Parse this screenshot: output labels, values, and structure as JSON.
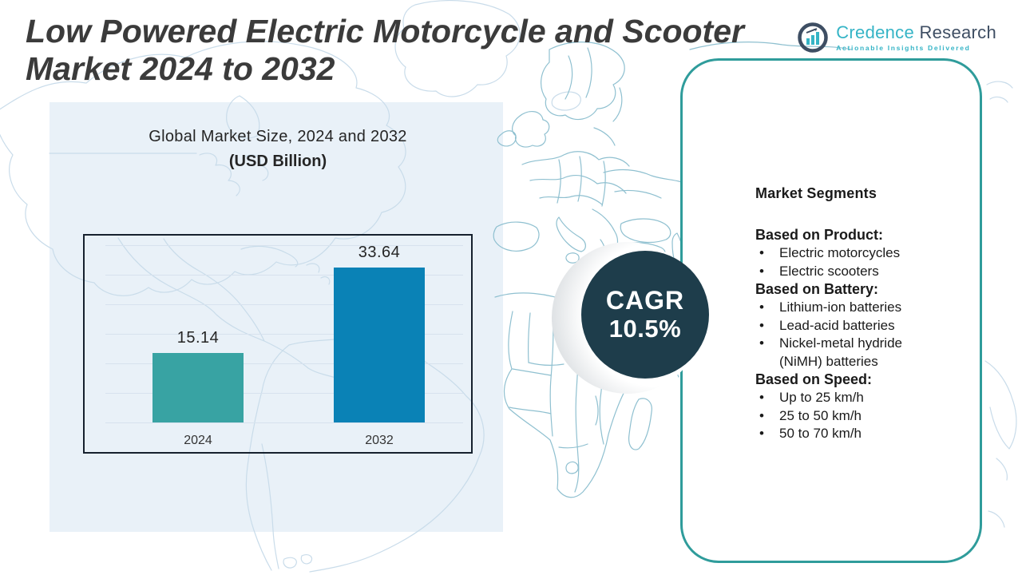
{
  "title": {
    "line1": "Low Powered Electric Motorcycle and Scooter",
    "line2": "Market 2024 to 2032"
  },
  "logo": {
    "brand_first": "Credence",
    "brand_second": "Research",
    "tagline": "Actionable Insights Delivered"
  },
  "chart_data": {
    "type": "bar",
    "title": "Global Market Size, 2024 and 2032",
    "subtitle": "(USD Billion)",
    "unit": "USD Billion",
    "categories": [
      "2024",
      "2032"
    ],
    "values": [
      15.14,
      33.64
    ],
    "value_labels": [
      "15.14",
      "33.64"
    ],
    "bar_colors": [
      "#38a3a3",
      "#0a82b6"
    ],
    "ylim": [
      0,
      40
    ],
    "grid": true,
    "legend": "none"
  },
  "cagr": {
    "label": "CAGR",
    "value": "10.5%"
  },
  "segments": {
    "heading": "Market Segments",
    "groups": [
      {
        "label": "Based on Product:",
        "items": [
          "Electric motorcycles",
          "Electric scooters"
        ]
      },
      {
        "label": "Based on Battery:",
        "items": [
          "Lithium-ion batteries",
          "Lead-acid batteries",
          "Nickel-metal hydride (NiMH) batteries"
        ]
      },
      {
        "label": "Based on Speed:",
        "items": [
          "Up to 25 km/h",
          "25 to 50 km/h",
          "50 to 70 km/h"
        ]
      }
    ]
  },
  "colors": {
    "title_text": "#3b3b3b",
    "accent_teal": "#2f9c9b",
    "bar_2024": "#38a3a3",
    "bar_2032": "#0a82b6",
    "cagr_circle": "#1e3d4b",
    "light_panel": "#e9f1f8",
    "map_line_light": "#c9dcea",
    "map_line_teal": "#8fc0d0",
    "logo_cyan": "#35b4c6",
    "logo_slate": "#3e4e63"
  }
}
